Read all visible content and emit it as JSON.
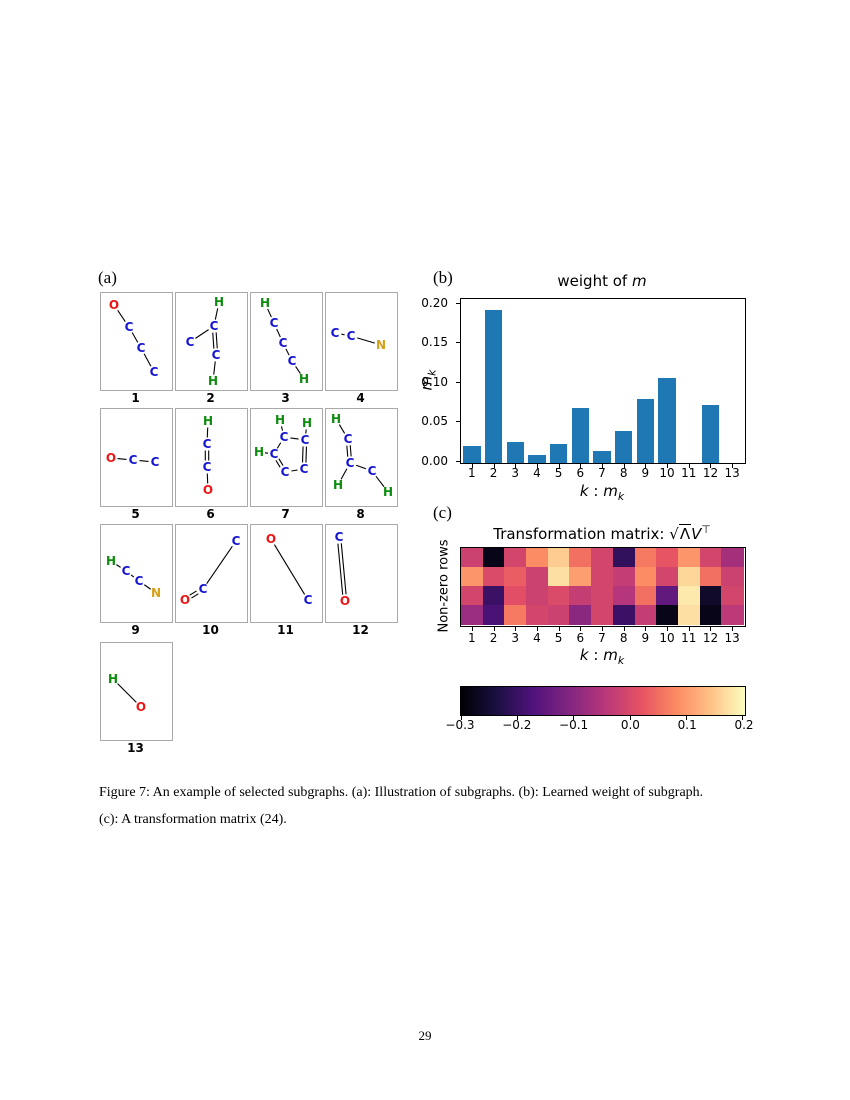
{
  "page": {
    "number": "29",
    "caption": {
      "line1": "Figure 7: An example of selected subgraphs. (a): Illustration of subgraphs. (b): Learned weight of subgraph.",
      "line2": "(c): A transformation matrix (24)."
    }
  },
  "labels": {
    "a": "(a)",
    "b": "(b)",
    "c": "(c)"
  },
  "atom_colors": {
    "C": "#1616d1",
    "H": "#0e8c0e",
    "O": "#ed1515",
    "N": "#d4a017"
  },
  "subgraphs": [
    {
      "label": "1",
      "atoms": [
        [
          "O",
          13,
          12
        ],
        [
          "C",
          28,
          34
        ],
        [
          "C",
          40,
          55
        ],
        [
          "C",
          53,
          79
        ]
      ],
      "bonds": [
        [
          0,
          1,
          1
        ],
        [
          1,
          2,
          1
        ],
        [
          2,
          3,
          1
        ]
      ]
    },
    {
      "label": "2",
      "atoms": [
        [
          "H",
          43,
          9
        ],
        [
          "C",
          38,
          33
        ],
        [
          "C",
          14,
          49
        ],
        [
          "C",
          40,
          62
        ],
        [
          "H",
          37,
          88
        ]
      ],
      "bonds": [
        [
          0,
          1,
          1
        ],
        [
          1,
          2,
          1
        ],
        [
          1,
          3,
          2
        ],
        [
          3,
          4,
          1
        ]
      ]
    },
    {
      "label": "3",
      "atoms": [
        [
          "H",
          14,
          10
        ],
        [
          "C",
          23,
          30
        ],
        [
          "C",
          32,
          50
        ],
        [
          "C",
          41,
          68
        ],
        [
          "H",
          53,
          86
        ]
      ],
      "bonds": [
        [
          0,
          1,
          1
        ],
        [
          1,
          2,
          1
        ],
        [
          2,
          3,
          1
        ],
        [
          3,
          4,
          1
        ]
      ]
    },
    {
      "label": "4",
      "atoms": [
        [
          "C",
          9,
          40
        ],
        [
          "C",
          25,
          43
        ],
        [
          "N",
          55,
          52
        ]
      ],
      "bonds": [
        [
          0,
          1,
          1
        ],
        [
          1,
          2,
          1
        ]
      ]
    },
    {
      "label": "5",
      "atoms": [
        [
          "O",
          10,
          49
        ],
        [
          "C",
          32,
          51
        ],
        [
          "C",
          54,
          53
        ]
      ],
      "bonds": [
        [
          0,
          1,
          1
        ],
        [
          1,
          2,
          1
        ]
      ]
    },
    {
      "label": "6",
      "atoms": [
        [
          "H",
          32,
          12
        ],
        [
          "C",
          31,
          35
        ],
        [
          "C",
          31,
          58
        ],
        [
          "O",
          32,
          81
        ]
      ],
      "bonds": [
        [
          0,
          1,
          1
        ],
        [
          1,
          2,
          2
        ],
        [
          2,
          3,
          1
        ]
      ]
    },
    {
      "label": "7",
      "atoms": [
        [
          "H",
          29,
          11
        ],
        [
          "H",
          56,
          14
        ],
        [
          "C",
          33,
          28
        ],
        [
          "C",
          54,
          31
        ],
        [
          "H",
          8,
          43
        ],
        [
          "C",
          23,
          45
        ],
        [
          "C",
          34,
          63
        ],
        [
          "C",
          53,
          60
        ]
      ],
      "bonds": [
        [
          0,
          2,
          1
        ],
        [
          1,
          3,
          1
        ],
        [
          4,
          5,
          1
        ],
        [
          2,
          5,
          1
        ],
        [
          5,
          6,
          2
        ],
        [
          6,
          7,
          1
        ],
        [
          7,
          3,
          2
        ],
        [
          2,
          3,
          1
        ]
      ]
    },
    {
      "label": "8",
      "atoms": [
        [
          "H",
          10,
          10
        ],
        [
          "C",
          22,
          30
        ],
        [
          "C",
          24,
          54
        ],
        [
          "H",
          12,
          76
        ],
        [
          "C",
          46,
          62
        ],
        [
          "H",
          62,
          83
        ]
      ],
      "bonds": [
        [
          0,
          1,
          1
        ],
        [
          1,
          2,
          2
        ],
        [
          2,
          3,
          1
        ],
        [
          2,
          4,
          1
        ],
        [
          4,
          5,
          1
        ]
      ]
    },
    {
      "label": "9",
      "atoms": [
        [
          "H",
          10,
          36
        ],
        [
          "C",
          25,
          46
        ],
        [
          "C",
          38,
          56
        ],
        [
          "N",
          55,
          68
        ]
      ],
      "bonds": [
        [
          0,
          1,
          1
        ],
        [
          1,
          2,
          1
        ],
        [
          2,
          3,
          1
        ]
      ]
    },
    {
      "label": "10",
      "atoms": [
        [
          "O",
          9,
          75
        ],
        [
          "C",
          27,
          64
        ],
        [
          "C",
          60,
          16
        ]
      ],
      "bonds": [
        [
          0,
          1,
          2
        ],
        [
          1,
          2,
          1
        ]
      ]
    },
    {
      "label": "11",
      "atoms": [
        [
          "O",
          20,
          14
        ],
        [
          "C",
          57,
          75
        ]
      ],
      "bonds": [
        [
          0,
          1,
          1
        ]
      ]
    },
    {
      "label": "12",
      "atoms": [
        [
          "C",
          13,
          12
        ],
        [
          "O",
          19,
          76
        ]
      ],
      "bonds": [
        [
          0,
          1,
          2
        ]
      ]
    },
    {
      "label": "13",
      "atoms": [
        [
          "H",
          12,
          36
        ],
        [
          "O",
          40,
          64
        ]
      ],
      "bonds": [
        [
          0,
          1,
          1
        ]
      ]
    }
  ],
  "chart_data": [
    {
      "type": "bar",
      "title_plain": "weight of ",
      "title_math": "m",
      "ylabel_math": "m",
      "ylabel_sub": "k",
      "xlabel_k": "k",
      "xlabel_sep": " : ",
      "xlabel_m": "m",
      "xlabel_msub": "k",
      "categories": [
        "1",
        "2",
        "3",
        "4",
        "5",
        "6",
        "7",
        "8",
        "9",
        "10",
        "11",
        "12",
        "13"
      ],
      "values": [
        0.021,
        0.194,
        0.026,
        0.01,
        0.024,
        0.07,
        0.015,
        0.04,
        0.081,
        0.108,
        0,
        0.073,
        0
      ],
      "ylim": [
        0,
        0.205
      ],
      "ytick_values": [
        0,
        0.05,
        0.1,
        0.15,
        0.2
      ],
      "ytick_labels": [
        "0.00",
        "0.05",
        "0.10",
        "0.15",
        "0.20"
      ],
      "bar_color": "#1f77b4",
      "grid": false,
      "legend": "none"
    },
    {
      "type": "heatmap",
      "title_plain": "Transformation matrix: ",
      "title_sqrt": "√",
      "title_lambda": "Λ",
      "title_v": "V",
      "title_sup": "⊤",
      "ylabel": "Non-zero rows",
      "xlabel_k": "k",
      "xlabel_sep": " : ",
      "xlabel_m": "m",
      "xlabel_msub": "k",
      "categories": [
        "1",
        "2",
        "3",
        "4",
        "5",
        "6",
        "7",
        "8",
        "9",
        "10",
        "11",
        "12",
        "13"
      ],
      "values": [
        [
          -0.02,
          -0.28,
          -0.01,
          0.08,
          0.15,
          0.05,
          -0.01,
          -0.21,
          0.06,
          0.02,
          0.09,
          -0.01,
          -0.07
        ],
        [
          0.09,
          0.0,
          0.03,
          -0.02,
          0.17,
          0.1,
          -0.01,
          -0.03,
          0.08,
          -0.01,
          0.16,
          0.05,
          -0.02
        ],
        [
          -0.01,
          -0.2,
          0.01,
          -0.02,
          0.0,
          -0.03,
          -0.01,
          -0.05,
          0.05,
          -0.15,
          0.18,
          -0.26,
          -0.01
        ],
        [
          -0.08,
          -0.18,
          0.06,
          -0.01,
          -0.02,
          -0.1,
          -0.01,
          -0.2,
          -0.03,
          -0.28,
          0.17,
          -0.28,
          -0.04
        ]
      ],
      "vmin": -0.3,
      "vmax": 0.2,
      "colormap": "magma",
      "colorbar_tick_values": [
        -0.3,
        -0.2,
        -0.1,
        0.0,
        0.1,
        0.2
      ],
      "colorbar_tick_labels": [
        "−0.3",
        "−0.2",
        "−0.1",
        "0.0",
        "0.1",
        "0.2"
      ]
    }
  ]
}
